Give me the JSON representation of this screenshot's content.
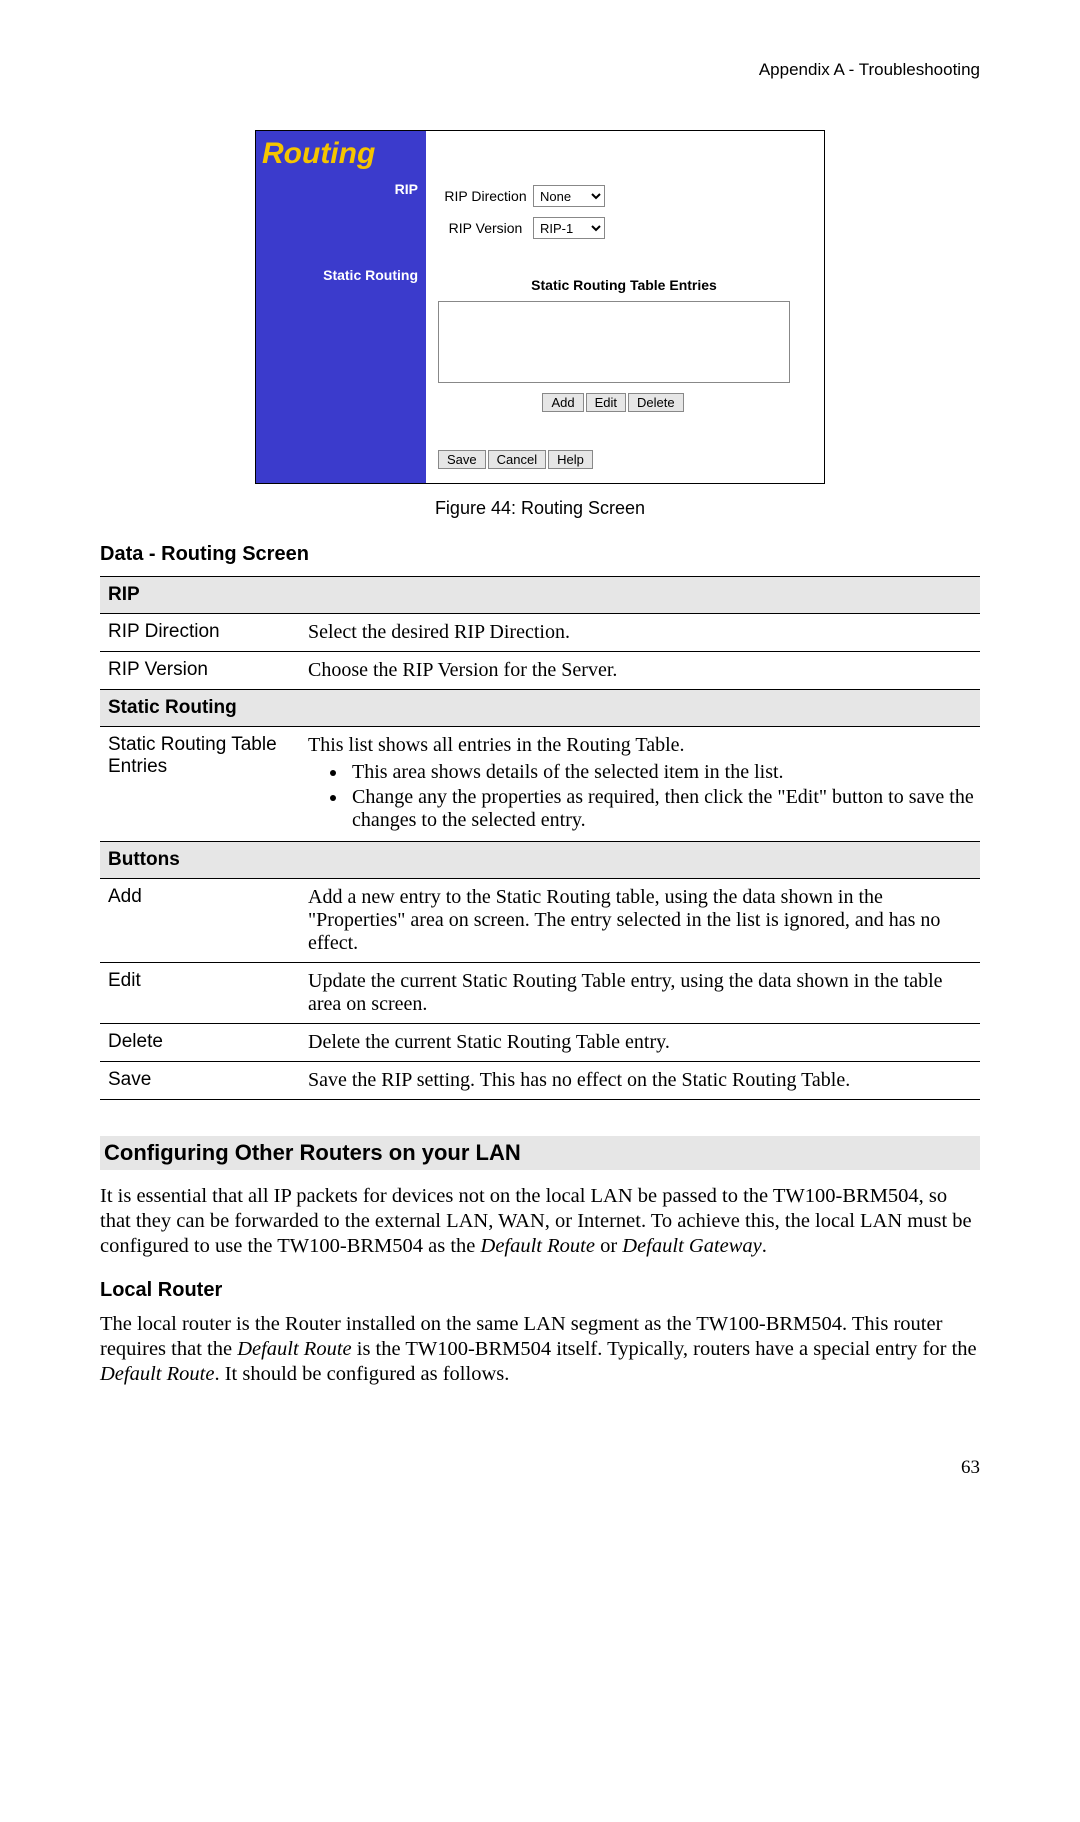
{
  "header": {
    "appendix": "Appendix A - Troubleshooting"
  },
  "screenshot": {
    "title": "Routing",
    "sidelabel_rip": "RIP",
    "sidelabel_static": "Static Routing",
    "sidebar_bg": "#3b3bcc",
    "title_color": "#f5c400",
    "row_rip_direction_label": "RIP Direction",
    "row_rip_direction_value": "None",
    "row_rip_version_label": "RIP Version",
    "row_rip_version_value": "RIP-1",
    "static_section_title": "Static Routing Table Entries",
    "btn_add": "Add",
    "btn_edit": "Edit",
    "btn_delete": "Delete",
    "btn_save": "Save",
    "btn_cancel": "Cancel",
    "btn_help": "Help"
  },
  "figure_caption": "Figure 44: Routing Screen",
  "data_heading": "Data - Routing Screen",
  "table": {
    "group_rip": "RIP",
    "rip_dir_label": "RIP Direction",
    "rip_dir_desc": "Select the desired RIP Direction.",
    "rip_ver_label": "RIP Version",
    "rip_ver_desc": "Choose the RIP Version for the Server.",
    "group_static": "Static Routing",
    "static_label": "Static Routing Table Entries",
    "static_desc_intro": "This list shows all entries in the Routing Table.",
    "static_li1": "This area shows details of the selected item in the list.",
    "static_li2": "Change any the properties as required, then click the \"Edit\" button to save the changes to the selected entry.",
    "group_buttons": "Buttons",
    "add_label": "Add",
    "add_desc": "Add a new entry to the Static Routing table, using the data shown in the \"Properties\" area on screen. The entry selected in the list is ignored, and has no effect.",
    "edit_label": "Edit",
    "edit_desc": "Update the current Static Routing Table entry, using the data shown in the table area on screen.",
    "delete_label": "Delete",
    "delete_desc": "Delete the current Static Routing Table entry.",
    "save_label": "Save",
    "save_desc": "Save the RIP setting. This has no effect on the Static Routing Table."
  },
  "conf_heading": "Configuring Other Routers on your LAN",
  "conf_para_1a": "It is essential that all IP packets for devices not on the local LAN be passed to the TW100-BRM504, so that they can be forwarded to the external LAN, WAN, or Internet. To achieve this, the local LAN must be configured to use the TW100-BRM504 as the ",
  "conf_para_1b": "Default Route",
  "conf_para_1c": " or ",
  "conf_para_1d": "Default Gateway",
  "conf_para_1e": ".",
  "local_router_h": "Local Router",
  "local_router_p_a": "The local router is the Router installed on the same LAN segment as the TW100-BRM504. This router requires that the ",
  "local_router_p_b": "Default Route",
  "local_router_p_c": " is the TW100-BRM504 itself. Typically, routers have a special entry for the ",
  "local_router_p_d": "Default Route",
  "local_router_p_e": ". It should be configured as follows.",
  "page_num": "63"
}
